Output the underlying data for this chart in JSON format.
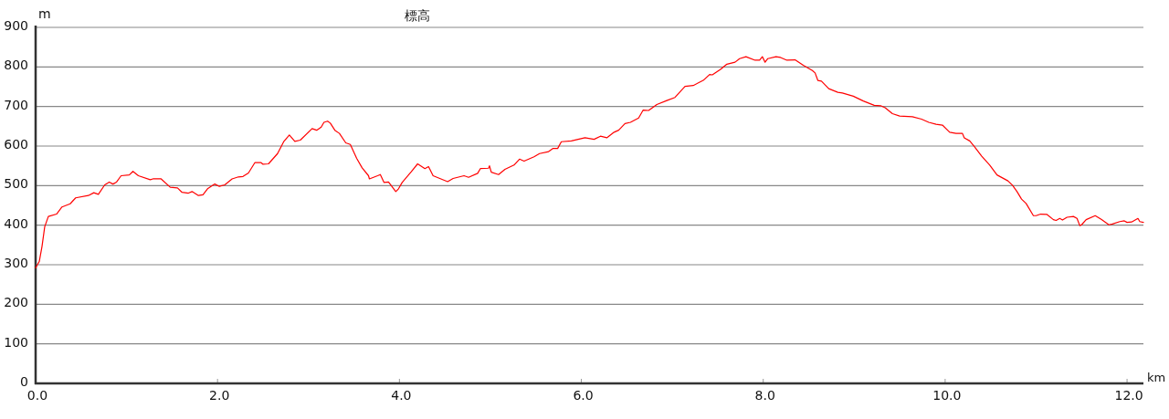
{
  "chart_data": {
    "type": "line",
    "title": "標高",
    "xlabel": "km",
    "ylabel": "m",
    "x": [
      0,
      0.04,
      0.07,
      0.1,
      0.14,
      0.23,
      0.29,
      0.38,
      0.44,
      0.58,
      0.64,
      0.69,
      0.76,
      0.81,
      0.85,
      0.89,
      0.94,
      1.03,
      1.07,
      1.13,
      1.26,
      1.29,
      1.38,
      1.48,
      1.56,
      1.61,
      1.68,
      1.72,
      1.79,
      1.84,
      1.89,
      1.97,
      2.02,
      2.08,
      2.16,
      2.23,
      2.28,
      2.34,
      2.41,
      2.48,
      2.5,
      2.56,
      2.66,
      2.73,
      2.79,
      2.85,
      2.91,
      3.04,
      3.09,
      3.14,
      3.17,
      3.21,
      3.24,
      3.29,
      3.34,
      3.41,
      3.46,
      3.53,
      3.59,
      3.66,
      3.67,
      3.76,
      3.79,
      3.83,
      3.88,
      3.96,
      3.99,
      4.03,
      4.13,
      4.2,
      4.28,
      4.32,
      4.37,
      4.53,
      4.59,
      4.71,
      4.76,
      4.86,
      4.89,
      4.98,
      4.99,
      5.01,
      5.09,
      5.16,
      5.26,
      5.32,
      5.37,
      5.48,
      5.54,
      5.64,
      5.69,
      5.74,
      5.78,
      5.89,
      6.04,
      6.14,
      6.21,
      6.28,
      6.36,
      6.41,
      6.48,
      6.54,
      6.63,
      6.68,
      6.74,
      6.83,
      6.94,
      7.03,
      7.14,
      7.23,
      7.34,
      7.41,
      7.44,
      7.53,
      7.6,
      7.69,
      7.74,
      7.81,
      7.91,
      7.96,
      7.99,
      8.02,
      8.05,
      8.14,
      8.19,
      8.26,
      8.35,
      8.44,
      8.54,
      8.57,
      8.6,
      8.64,
      8.72,
      8.82,
      8.87,
      8.99,
      9.1,
      9.22,
      9.29,
      9.34,
      9.42,
      9.5,
      9.64,
      9.74,
      9.82,
      9.9,
      9.97,
      10.05,
      10.12,
      10.19,
      10.21,
      10.27,
      10.32,
      10.4,
      10.49,
      10.57,
      10.69,
      10.74,
      10.79,
      10.84,
      10.89,
      10.97,
      11.0,
      11.05,
      11.12,
      11.19,
      11.22,
      11.26,
      11.29,
      11.34,
      11.41,
      11.45,
      11.48,
      11.5,
      11.55,
      11.65,
      11.72,
      11.8,
      11.84,
      11.92,
      11.97,
      12.0,
      12.05,
      12.12,
      12.14,
      12.18
    ],
    "series": [
      {
        "color": "#ff0000",
        "values": [
          292,
          308,
          346,
          396,
          422,
          428,
          446,
          454,
          469,
          475,
          482,
          478,
          502,
          509,
          504,
          509,
          525,
          527,
          536,
          525,
          515,
          517,
          517,
          496,
          494,
          483,
          481,
          485,
          475,
          477,
          492,
          504,
          498,
          502,
          517,
          522,
          523,
          532,
          558,
          558,
          554,
          555,
          581,
          612,
          628,
          612,
          615,
          644,
          640,
          648,
          660,
          663,
          658,
          640,
          632,
          608,
          604,
          569,
          545,
          525,
          517,
          525,
          528,
          508,
          509,
          485,
          492,
          508,
          535,
          555,
          543,
          548,
          525,
          510,
          518,
          525,
          521,
          531,
          543,
          544,
          550,
          534,
          528,
          541,
          552,
          567,
          562,
          573,
          581,
          586,
          594,
          594,
          611,
          613,
          621,
          617,
          625,
          621,
          635,
          640,
          657,
          660,
          671,
          691,
          690,
          705,
          715,
          723,
          751,
          753,
          766,
          781,
          780,
          794,
          807,
          812,
          821,
          826,
          817,
          817,
          826,
          812,
          821,
          826,
          824,
          817,
          818,
          804,
          791,
          785,
          766,
          764,
          745,
          736,
          734,
          726,
          714,
          703,
          702,
          697,
          682,
          676,
          674,
          668,
          660,
          655,
          653,
          635,
          632,
          632,
          621,
          613,
          599,
          575,
          552,
          527,
          512,
          501,
          485,
          466,
          455,
          424,
          424,
          428,
          427,
          414,
          412,
          417,
          413,
          420,
          422,
          417,
          399,
          401,
          414,
          424,
          414,
          401,
          403,
          409,
          411,
          407,
          408,
          417,
          409,
          407
        ]
      }
    ],
    "xlim": [
      0,
      12.18
    ],
    "ylim": [
      0,
      900
    ],
    "xticks": [
      {
        "value": 0,
        "label": "0.0"
      },
      {
        "value": 2,
        "label": "2.0"
      },
      {
        "value": 4,
        "label": "4.0"
      },
      {
        "value": 6,
        "label": "6.0"
      },
      {
        "value": 8,
        "label": "8.0"
      },
      {
        "value": 10,
        "label": "10.0"
      },
      {
        "value": 12,
        "label": "12.0"
      }
    ],
    "yticks": [
      0,
      100,
      200,
      300,
      400,
      500,
      600,
      700,
      800,
      900
    ],
    "grid": "y",
    "marker": "none",
    "line_style": "solid"
  }
}
